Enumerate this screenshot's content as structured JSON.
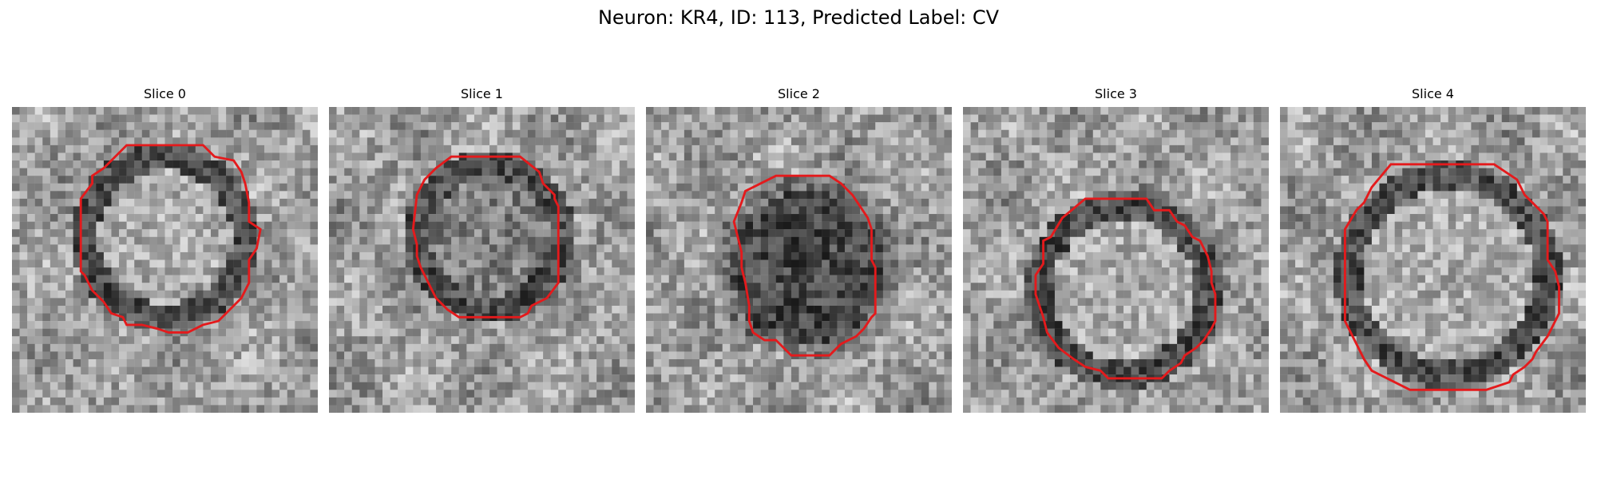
{
  "figure": {
    "title": "Neuron: KR4, ID: 113, Predicted Label: CV"
  },
  "panels": [
    {
      "title": "Slice 0",
      "contour_type": "ring",
      "interior_tone": "light"
    },
    {
      "title": "Slice 1",
      "contour_type": "ring",
      "interior_tone": "mixed"
    },
    {
      "title": "Slice 2",
      "contour_type": "solid",
      "interior_tone": "dark"
    },
    {
      "title": "Slice 3",
      "contour_type": "ring",
      "interior_tone": "light"
    },
    {
      "title": "Slice 4",
      "contour_type": "ring",
      "interior_tone": "light"
    }
  ],
  "colors": {
    "contour": "#e41a1c",
    "background": "#ffffff",
    "colormap": "grayscale"
  }
}
